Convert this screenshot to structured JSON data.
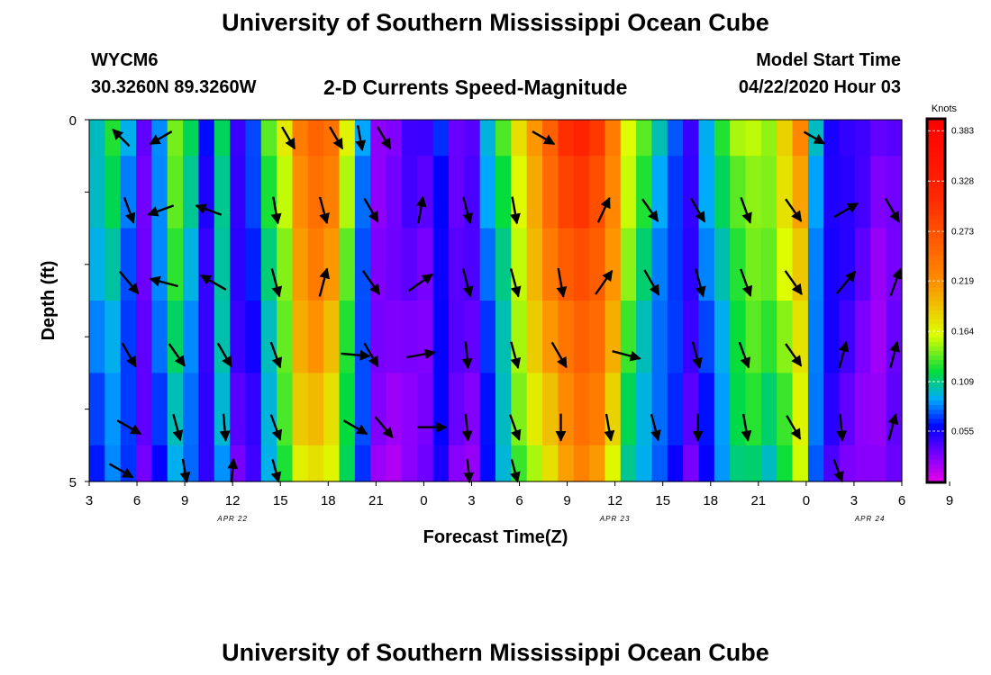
{
  "header": {
    "title": "University of Southern Mississippi Ocean Cube",
    "station_id": "WYCM6",
    "coordinates": "30.3260N 89.3260W",
    "plot_title": "2-D Currents Speed-Magnitude",
    "model_label": "Model Start Time",
    "model_time": "04/22/2020 Hour 03",
    "footer_title": "University of Southern Mississippi Ocean Cube"
  },
  "colorbar": {
    "unit": "Knots",
    "ticks": [
      "0.383",
      "0.328",
      "0.273",
      "0.219",
      "0.164",
      "0.109",
      "0.055"
    ],
    "tick_values": [
      0.383,
      0.328,
      0.273,
      0.219,
      0.164,
      0.109,
      0.055
    ],
    "range": [
      0.0,
      0.395
    ]
  },
  "chart_data": {
    "type": "heatmap",
    "title": "2-D Currents Speed-Magnitude",
    "xlabel": "Forecast Time(Z)",
    "ylabel": "Depth (ft)",
    "ylim": [
      0,
      5
    ],
    "y_tick_labels": [
      "0",
      "5"
    ],
    "x_hours": [
      3,
      54
    ],
    "x_tick_labels": [
      "3",
      "6",
      "9",
      "12",
      "15",
      "18",
      "21",
      "0",
      "3",
      "6",
      "9",
      "12",
      "15",
      "18",
      "21",
      "0",
      "3",
      "6",
      "9"
    ],
    "date_labels": [
      {
        "hour": 12,
        "label": "APR 22"
      },
      {
        "hour": 36,
        "label": "APR 23"
      },
      {
        "hour": 52,
        "label": "APR 24"
      }
    ],
    "depth_bins": [
      0.5,
      1.5,
      2.5,
      3.5,
      4.5,
      5.0
    ],
    "speed_profile_knots": [
      0.1,
      0.12,
      0.09,
      0.04,
      0.09,
      0.14,
      0.11,
      0.06,
      0.12,
      0.05,
      0.07,
      0.13,
      0.17,
      0.24,
      0.26,
      0.24,
      0.16,
      0.09,
      0.03,
      0.03,
      0.04,
      0.04,
      0.07,
      0.04,
      0.04,
      0.09,
      0.13,
      0.18,
      0.22,
      0.26,
      0.3,
      0.32,
      0.3,
      0.24,
      0.16,
      0.13,
      0.1,
      0.08,
      0.05,
      0.09,
      0.12,
      0.15,
      0.16,
      0.15,
      0.18,
      0.22,
      0.1,
      0.06,
      0.05,
      0.04,
      0.03,
      0.04
    ],
    "vectors": [
      {
        "hour": 5,
        "row": 0,
        "dir": 315,
        "len": 26
      },
      {
        "hour": 7.5,
        "row": 0,
        "dir": 240,
        "len": 28
      },
      {
        "hour": 20,
        "row": 0,
        "dir": 170,
        "len": 28
      },
      {
        "hour": 15.5,
        "row": 0,
        "dir": 150,
        "len": 28
      },
      {
        "hour": 18.5,
        "row": 0,
        "dir": 150,
        "len": 28
      },
      {
        "hour": 21.5,
        "row": 0,
        "dir": 150,
        "len": 28
      },
      {
        "hour": 31.5,
        "row": 0,
        "dir": 120,
        "len": 28
      },
      {
        "hour": 48.5,
        "row": 0,
        "dir": 120,
        "len": 26
      },
      {
        "hour": 5.5,
        "row": 1,
        "dir": 160,
        "len": 30
      },
      {
        "hour": 7.5,
        "row": 1,
        "dir": 250,
        "len": 30
      },
      {
        "hour": 10.5,
        "row": 1,
        "dir": 290,
        "len": 30
      },
      {
        "hour": 14.7,
        "row": 1,
        "dir": 170,
        "len": 30
      },
      {
        "hour": 17.7,
        "row": 1,
        "dir": 165,
        "len": 30
      },
      {
        "hour": 20.7,
        "row": 1,
        "dir": 150,
        "len": 30
      },
      {
        "hour": 23.8,
        "row": 1,
        "dir": 10,
        "len": 30
      },
      {
        "hour": 26.7,
        "row": 1,
        "dir": 165,
        "len": 30
      },
      {
        "hour": 29.7,
        "row": 1,
        "dir": 170,
        "len": 30
      },
      {
        "hour": 35.3,
        "row": 1,
        "dir": 25,
        "len": 30
      },
      {
        "hour": 38.2,
        "row": 1,
        "dir": 145,
        "len": 30
      },
      {
        "hour": 41.2,
        "row": 1,
        "dir": 150,
        "len": 30
      },
      {
        "hour": 44.2,
        "row": 1,
        "dir": 160,
        "len": 30
      },
      {
        "hour": 47.2,
        "row": 1,
        "dir": 145,
        "len": 30
      },
      {
        "hour": 50.5,
        "row": 1,
        "dir": 60,
        "len": 30
      },
      {
        "hour": 53.4,
        "row": 1,
        "dir": 150,
        "len": 30
      },
      {
        "hour": 5.5,
        "row": 2,
        "dir": 140,
        "len": 32
      },
      {
        "hour": 7.7,
        "row": 2,
        "dir": 285,
        "len": 32
      },
      {
        "hour": 10.8,
        "row": 2,
        "dir": 300,
        "len": 32
      },
      {
        "hour": 14.7,
        "row": 2,
        "dir": 165,
        "len": 32
      },
      {
        "hour": 17.7,
        "row": 2,
        "dir": 15,
        "len": 32
      },
      {
        "hour": 20.7,
        "row": 2,
        "dir": 145,
        "len": 32
      },
      {
        "hour": 23.8,
        "row": 2,
        "dir": 55,
        "len": 32
      },
      {
        "hour": 26.7,
        "row": 2,
        "dir": 165,
        "len": 32
      },
      {
        "hour": 29.7,
        "row": 2,
        "dir": 165,
        "len": 32
      },
      {
        "hour": 32.6,
        "row": 2,
        "dir": 170,
        "len": 32
      },
      {
        "hour": 35.3,
        "row": 2,
        "dir": 35,
        "len": 32
      },
      {
        "hour": 38.3,
        "row": 2,
        "dir": 150,
        "len": 32
      },
      {
        "hour": 41.3,
        "row": 2,
        "dir": 165,
        "len": 32
      },
      {
        "hour": 44.2,
        "row": 2,
        "dir": 160,
        "len": 32
      },
      {
        "hour": 47.2,
        "row": 2,
        "dir": 145,
        "len": 32
      },
      {
        "hour": 50.5,
        "row": 2,
        "dir": 40,
        "len": 32
      },
      {
        "hour": 53.6,
        "row": 2,
        "dir": 20,
        "len": 32
      },
      {
        "hour": 5.5,
        "row": 3,
        "dir": 150,
        "len": 30
      },
      {
        "hour": 8.5,
        "row": 3,
        "dir": 145,
        "len": 30
      },
      {
        "hour": 11.5,
        "row": 3,
        "dir": 150,
        "len": 30
      },
      {
        "hour": 14.7,
        "row": 3,
        "dir": 160,
        "len": 30
      },
      {
        "hour": 19.7,
        "row": 3,
        "dir": 95,
        "len": 32
      },
      {
        "hour": 20.7,
        "row": 3,
        "dir": 150,
        "len": 30
      },
      {
        "hour": 23.8,
        "row": 3,
        "dir": 80,
        "len": 32
      },
      {
        "hour": 26.7,
        "row": 3,
        "dir": 175,
        "len": 30
      },
      {
        "hour": 29.7,
        "row": 3,
        "dir": 165,
        "len": 30
      },
      {
        "hour": 32.5,
        "row": 3,
        "dir": 150,
        "len": 32
      },
      {
        "hour": 36.7,
        "row": 3,
        "dir": 105,
        "len": 32
      },
      {
        "hour": 41.1,
        "row": 3,
        "dir": 165,
        "len": 30
      },
      {
        "hour": 44.1,
        "row": 3,
        "dir": 160,
        "len": 30
      },
      {
        "hour": 47.2,
        "row": 3,
        "dir": 145,
        "len": 30
      },
      {
        "hour": 50.3,
        "row": 3,
        "dir": 15,
        "len": 30
      },
      {
        "hour": 53.5,
        "row": 3,
        "dir": 15,
        "len": 30
      },
      {
        "hour": 5.5,
        "row": 4,
        "dir": 120,
        "len": 30
      },
      {
        "hour": 8.5,
        "row": 4,
        "dir": 165,
        "len": 30
      },
      {
        "hour": 11.5,
        "row": 4,
        "dir": 175,
        "len": 30
      },
      {
        "hour": 14.7,
        "row": 4,
        "dir": 160,
        "len": 30
      },
      {
        "hour": 19.7,
        "row": 4,
        "dir": 120,
        "len": 30
      },
      {
        "hour": 21.5,
        "row": 4,
        "dir": 140,
        "len": 30
      },
      {
        "hour": 24.5,
        "row": 4,
        "dir": 90,
        "len": 32
      },
      {
        "hour": 26.7,
        "row": 4,
        "dir": 175,
        "len": 30
      },
      {
        "hour": 29.7,
        "row": 4,
        "dir": 160,
        "len": 30
      },
      {
        "hour": 32.6,
        "row": 4,
        "dir": 180,
        "len": 30
      },
      {
        "hour": 35.6,
        "row": 4,
        "dir": 170,
        "len": 30
      },
      {
        "hour": 38.5,
        "row": 4,
        "dir": 165,
        "len": 30
      },
      {
        "hour": 41.2,
        "row": 4,
        "dir": 180,
        "len": 30
      },
      {
        "hour": 44.2,
        "row": 4,
        "dir": 170,
        "len": 30
      },
      {
        "hour": 47.2,
        "row": 4,
        "dir": 150,
        "len": 30
      },
      {
        "hour": 50.2,
        "row": 4,
        "dir": 175,
        "len": 30
      },
      {
        "hour": 53.4,
        "row": 4,
        "dir": 15,
        "len": 30
      },
      {
        "hour": 5.0,
        "row": 5,
        "dir": 120,
        "len": 30
      },
      {
        "hour": 9.0,
        "row": 5,
        "dir": 170,
        "len": 26
      },
      {
        "hour": 12.0,
        "row": 5,
        "dir": 5,
        "len": 26
      },
      {
        "hour": 14.7,
        "row": 5,
        "dir": 165,
        "len": 26
      },
      {
        "hour": 26.8,
        "row": 5,
        "dir": 175,
        "len": 26
      },
      {
        "hour": 29.7,
        "row": 5,
        "dir": 165,
        "len": 26
      },
      {
        "hour": 50.0,
        "row": 5,
        "dir": 160,
        "len": 26
      }
    ]
  }
}
